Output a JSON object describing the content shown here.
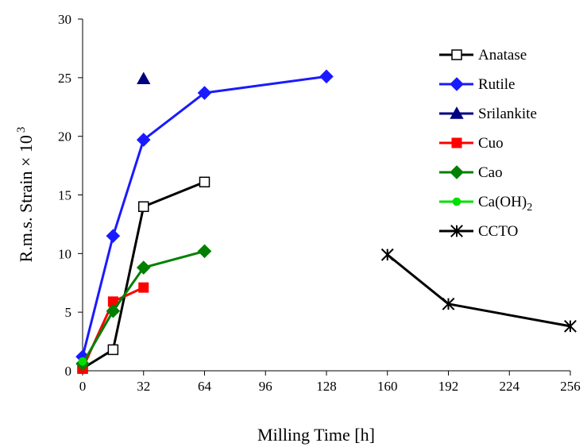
{
  "chart_data": {
    "type": "line",
    "title": "",
    "xlabel": "Milling Time [h]",
    "ylabel": "R.m.s. Strain × 10",
    "ylabel_superscript": "3",
    "xlim": [
      0,
      256
    ],
    "ylim": [
      0,
      30
    ],
    "xticks": [
      0,
      32,
      64,
      96,
      128,
      160,
      192,
      224,
      256
    ],
    "yticks": [
      0,
      5,
      10,
      15,
      20,
      25,
      30
    ],
    "grid": false,
    "legend_position": "right",
    "series": [
      {
        "name": "Anatase",
        "sub": "",
        "color": "#000000",
        "marker": "open-square",
        "points": [
          [
            0,
            0.2
          ],
          [
            16,
            1.8
          ],
          [
            32,
            14.0
          ],
          [
            64,
            16.1
          ]
        ]
      },
      {
        "name": "Rutile",
        "sub": "",
        "color": "#1a1aff",
        "marker": "diamond",
        "points": [
          [
            0,
            1.2
          ],
          [
            16,
            11.5
          ],
          [
            32,
            19.7
          ],
          [
            64,
            23.7
          ],
          [
            128,
            25.1
          ]
        ]
      },
      {
        "name": "Srilankite",
        "sub": "",
        "color": "#000080",
        "marker": "triangle",
        "points": [
          [
            32,
            24.9
          ]
        ]
      },
      {
        "name": "Cuo",
        "sub": "",
        "color": "#ff0000",
        "marker": "square",
        "points": [
          [
            0,
            0.2
          ],
          [
            16,
            5.9
          ],
          [
            32,
            7.1
          ]
        ]
      },
      {
        "name": "Cao",
        "sub": "",
        "color": "#008000",
        "marker": "diamond",
        "points": [
          [
            0,
            0.6
          ],
          [
            16,
            5.1
          ],
          [
            32,
            8.8
          ],
          [
            64,
            10.2
          ]
        ]
      },
      {
        "name": "Ca(OH)",
        "sub": "2",
        "color": "#00e000",
        "marker": "circle",
        "points": [
          [
            0,
            0.8
          ]
        ]
      },
      {
        "name": "CCTO",
        "sub": "",
        "color": "#000000",
        "marker": "asterisk",
        "points": [
          [
            160,
            9.9
          ],
          [
            192,
            5.7
          ],
          [
            256,
            3.8
          ]
        ]
      }
    ]
  }
}
